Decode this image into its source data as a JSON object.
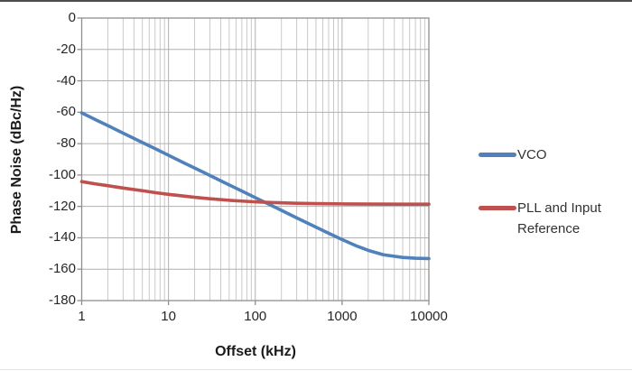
{
  "chart_data": {
    "type": "line",
    "title": "",
    "xlabel": "Offset (kHz)",
    "ylabel": "Phase Noise (dBc/Hz)",
    "x_scale": "log",
    "xlim": [
      1,
      10000
    ],
    "ylim": [
      -180,
      0
    ],
    "x_ticks": [
      1,
      10,
      100,
      1000,
      10000
    ],
    "x_tick_labels": [
      "1",
      "10",
      "100",
      "1000",
      "10000"
    ],
    "y_ticks": [
      0,
      -20,
      -40,
      -60,
      -80,
      -100,
      -120,
      -140,
      -160,
      -180
    ],
    "y_tick_labels": [
      "0",
      "-20",
      "-40",
      "-60",
      "-80",
      "-100",
      "-120",
      "-140",
      "-160",
      "-180"
    ],
    "grid": "horizontal-major + vertical-major + vertical-log-minor",
    "legend_position": "right-outside",
    "series": [
      {
        "name": "VCO",
        "color": "#4F81BD",
        "x": [
          1,
          1.5,
          2,
          3,
          5,
          7,
          10,
          15,
          20,
          30,
          50,
          70,
          100,
          150,
          200,
          300,
          500,
          700,
          1000,
          1500,
          2000,
          3000,
          5000,
          7000,
          10000
        ],
        "y": [
          -60.4,
          -65.2,
          -68.5,
          -73.3,
          -79.3,
          -83.2,
          -87.4,
          -92.2,
          -95.5,
          -100.3,
          -106.3,
          -110.2,
          -114.4,
          -119.1,
          -122.5,
          -127.3,
          -133.2,
          -137.1,
          -141.1,
          -145.4,
          -148.0,
          -150.8,
          -152.5,
          -153.0,
          -153.2
        ]
      },
      {
        "name": "PLL and Input Reference",
        "color": "#C0504D",
        "x": [
          1,
          1.5,
          2,
          3,
          5,
          7,
          10,
          15,
          20,
          30,
          50,
          70,
          100,
          150,
          200,
          300,
          500,
          700,
          1000,
          2000,
          5000,
          10000
        ],
        "y": [
          -104.2,
          -105.8,
          -106.8,
          -108.3,
          -110.0,
          -111.2,
          -112.3,
          -113.4,
          -114.2,
          -115.1,
          -116.1,
          -116.6,
          -117.1,
          -117.5,
          -117.7,
          -118.0,
          -118.2,
          -118.3,
          -118.4,
          -118.5,
          -118.6,
          -118.6
        ]
      }
    ]
  },
  "style_colors": {
    "grid_minor": "#c9c9c9",
    "grid_major": "#b0b0b0",
    "frame": "#8f8f8f",
    "tick_text": "#262626"
  }
}
